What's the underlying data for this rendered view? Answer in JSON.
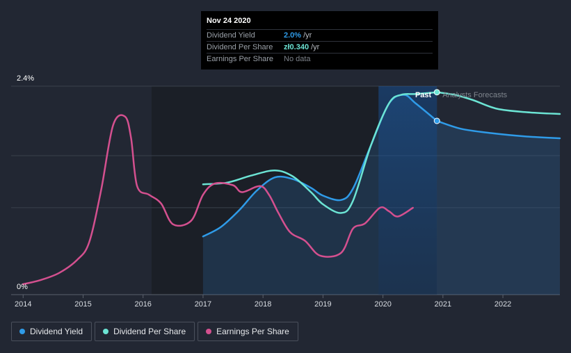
{
  "tooltip": {
    "date": "Nov 24 2020",
    "rows": [
      {
        "label": "Dividend Yield",
        "value": "2.0%",
        "unit": "/yr",
        "color": "#2f9be8"
      },
      {
        "label": "Dividend Per Share",
        "value": "zł0.340",
        "unit": "/yr",
        "color": "#6ce4d4"
      },
      {
        "label": "Earnings Per Share",
        "value": "No data",
        "unit": "",
        "color": "#7d828a"
      }
    ]
  },
  "chart_data": {
    "type": "line",
    "y_axis_labels": [
      "2.4%",
      "0%"
    ],
    "ylim": [
      0,
      2.4
    ],
    "xlim": [
      2013.8,
      2022.95
    ],
    "x_ticks": [
      "2014",
      "2015",
      "2016",
      "2017",
      "2018",
      "2019",
      "2020",
      "2021",
      "2022"
    ],
    "past_label": "Past",
    "forecast_label": "Analysts Forecasts",
    "current_date": 2020.9,
    "colors": {
      "yield": "#2f9be8",
      "dps": "#6ce4d4",
      "eps": "#d4508f"
    },
    "series": [
      {
        "name": "Dividend Yield",
        "key": "yield",
        "points": [
          [
            2017.0,
            0.67
          ],
          [
            2017.3,
            0.78
          ],
          [
            2017.6,
            0.97
          ],
          [
            2017.9,
            1.2
          ],
          [
            2018.2,
            1.35
          ],
          [
            2018.5,
            1.33
          ],
          [
            2018.8,
            1.23
          ],
          [
            2019.0,
            1.14
          ],
          [
            2019.3,
            1.09
          ],
          [
            2019.5,
            1.22
          ],
          [
            2019.8,
            1.72
          ],
          [
            2020.1,
            2.2
          ],
          [
            2020.35,
            2.3
          ],
          [
            2020.55,
            2.2
          ],
          [
            2020.9,
            2.0
          ]
        ]
      },
      {
        "name": "Dividend Per Share",
        "key": "dps",
        "points": [
          [
            2017.0,
            1.27
          ],
          [
            2017.4,
            1.29
          ],
          [
            2017.8,
            1.37
          ],
          [
            2018.2,
            1.43
          ],
          [
            2018.5,
            1.36
          ],
          [
            2018.8,
            1.18
          ],
          [
            2019.0,
            1.04
          ],
          [
            2019.3,
            0.94
          ],
          [
            2019.5,
            1.08
          ],
          [
            2019.8,
            1.72
          ],
          [
            2020.1,
            2.2
          ],
          [
            2020.3,
            2.3
          ],
          [
            2020.55,
            2.31
          ],
          [
            2020.9,
            2.33
          ]
        ]
      },
      {
        "name": "Earnings Per Share",
        "key": "eps",
        "points": [
          [
            2014.0,
            0.12
          ],
          [
            2014.3,
            0.17
          ],
          [
            2014.6,
            0.25
          ],
          [
            2014.9,
            0.4
          ],
          [
            2015.1,
            0.6
          ],
          [
            2015.3,
            1.2
          ],
          [
            2015.5,
            1.95
          ],
          [
            2015.7,
            2.05
          ],
          [
            2015.8,
            1.8
          ],
          [
            2015.9,
            1.25
          ],
          [
            2016.1,
            1.15
          ],
          [
            2016.3,
            1.05
          ],
          [
            2016.5,
            0.81
          ],
          [
            2016.8,
            0.85
          ],
          [
            2017.0,
            1.15
          ],
          [
            2017.2,
            1.28
          ],
          [
            2017.5,
            1.26
          ],
          [
            2017.65,
            1.18
          ],
          [
            2017.95,
            1.25
          ],
          [
            2018.1,
            1.15
          ],
          [
            2018.25,
            0.95
          ],
          [
            2018.45,
            0.72
          ],
          [
            2018.7,
            0.62
          ],
          [
            2018.95,
            0.45
          ],
          [
            2019.3,
            0.48
          ],
          [
            2019.5,
            0.76
          ],
          [
            2019.7,
            0.82
          ],
          [
            2019.95,
            1.0
          ],
          [
            2020.1,
            0.96
          ],
          [
            2020.25,
            0.9
          ],
          [
            2020.5,
            1.0
          ]
        ]
      }
    ],
    "forecast_series": [
      {
        "key": "yield",
        "points": [
          [
            2020.9,
            2.0
          ],
          [
            2021.3,
            1.91
          ],
          [
            2021.8,
            1.86
          ],
          [
            2022.4,
            1.82
          ],
          [
            2022.95,
            1.8
          ]
        ]
      },
      {
        "key": "dps",
        "points": [
          [
            2020.9,
            2.33
          ],
          [
            2021.2,
            2.3
          ],
          [
            2021.5,
            2.24
          ],
          [
            2021.9,
            2.14
          ],
          [
            2022.4,
            2.1
          ],
          [
            2022.95,
            2.08
          ]
        ]
      }
    ]
  },
  "legend": [
    {
      "label": "Dividend Yield",
      "color": "#2f9be8"
    },
    {
      "label": "Dividend Per Share",
      "color": "#6ce4d4"
    },
    {
      "label": "Earnings Per Share",
      "color": "#d4508f"
    }
  ]
}
